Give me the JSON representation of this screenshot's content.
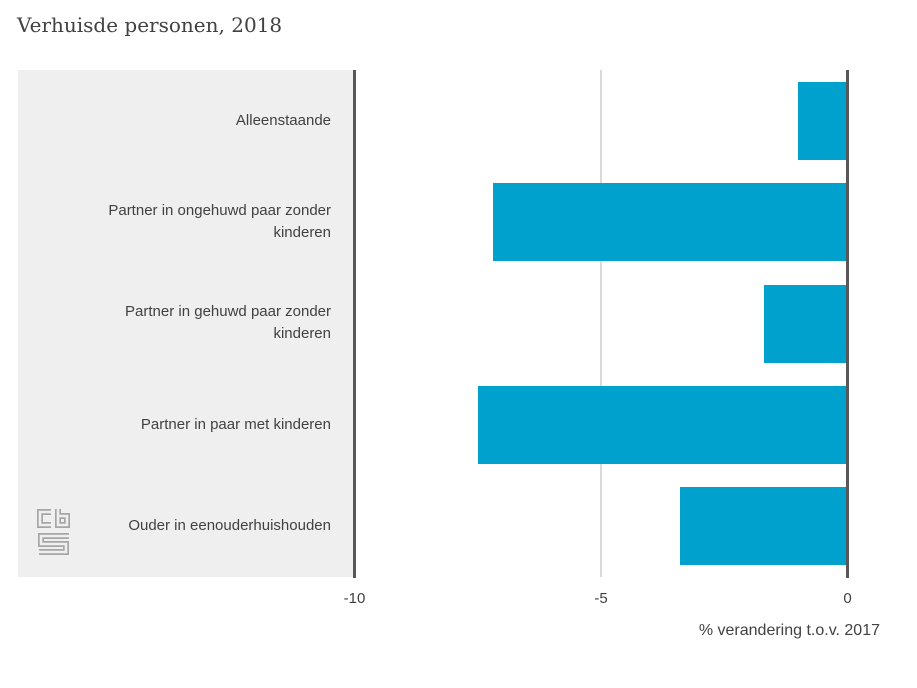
{
  "title": "Verhuisde personen, 2018",
  "chart_data": {
    "type": "bar",
    "orientation": "horizontal",
    "title": "Verhuisde personen, 2018",
    "categories": [
      "Alleenstaande",
      "Partner in ongehuwd paar zonder kinderen",
      "Partner in gehuwd paar zonder kinderen",
      "Partner in paar met kinderen",
      "Ouder in eenouderhuishouden"
    ],
    "values": [
      -1.0,
      -7.2,
      -1.7,
      -7.5,
      -3.4
    ],
    "xlabel": "% verandering t.o.v. 2017",
    "ylabel": "",
    "xlim": [
      -10,
      0
    ],
    "xticks": [
      -10,
      -5,
      0
    ],
    "xtick_labels": [
      "-10",
      "-5",
      "0"
    ],
    "grid": "vertical-gridline-at--5",
    "legend": "none",
    "bar_color": "#00a1cd"
  },
  "axis": {
    "tick_labels": [
      "-10",
      "-5",
      "0"
    ],
    "title": "% verandering t.o.v. 2017"
  },
  "branding": {
    "logo": "cbs-logo"
  },
  "colors": {
    "bar": "#00a1cd",
    "panel_background": "#efefef",
    "axis_line": "#58585a",
    "gridline": "#d9d9d9",
    "text": "#414141",
    "logo": "#a6a6a6"
  }
}
